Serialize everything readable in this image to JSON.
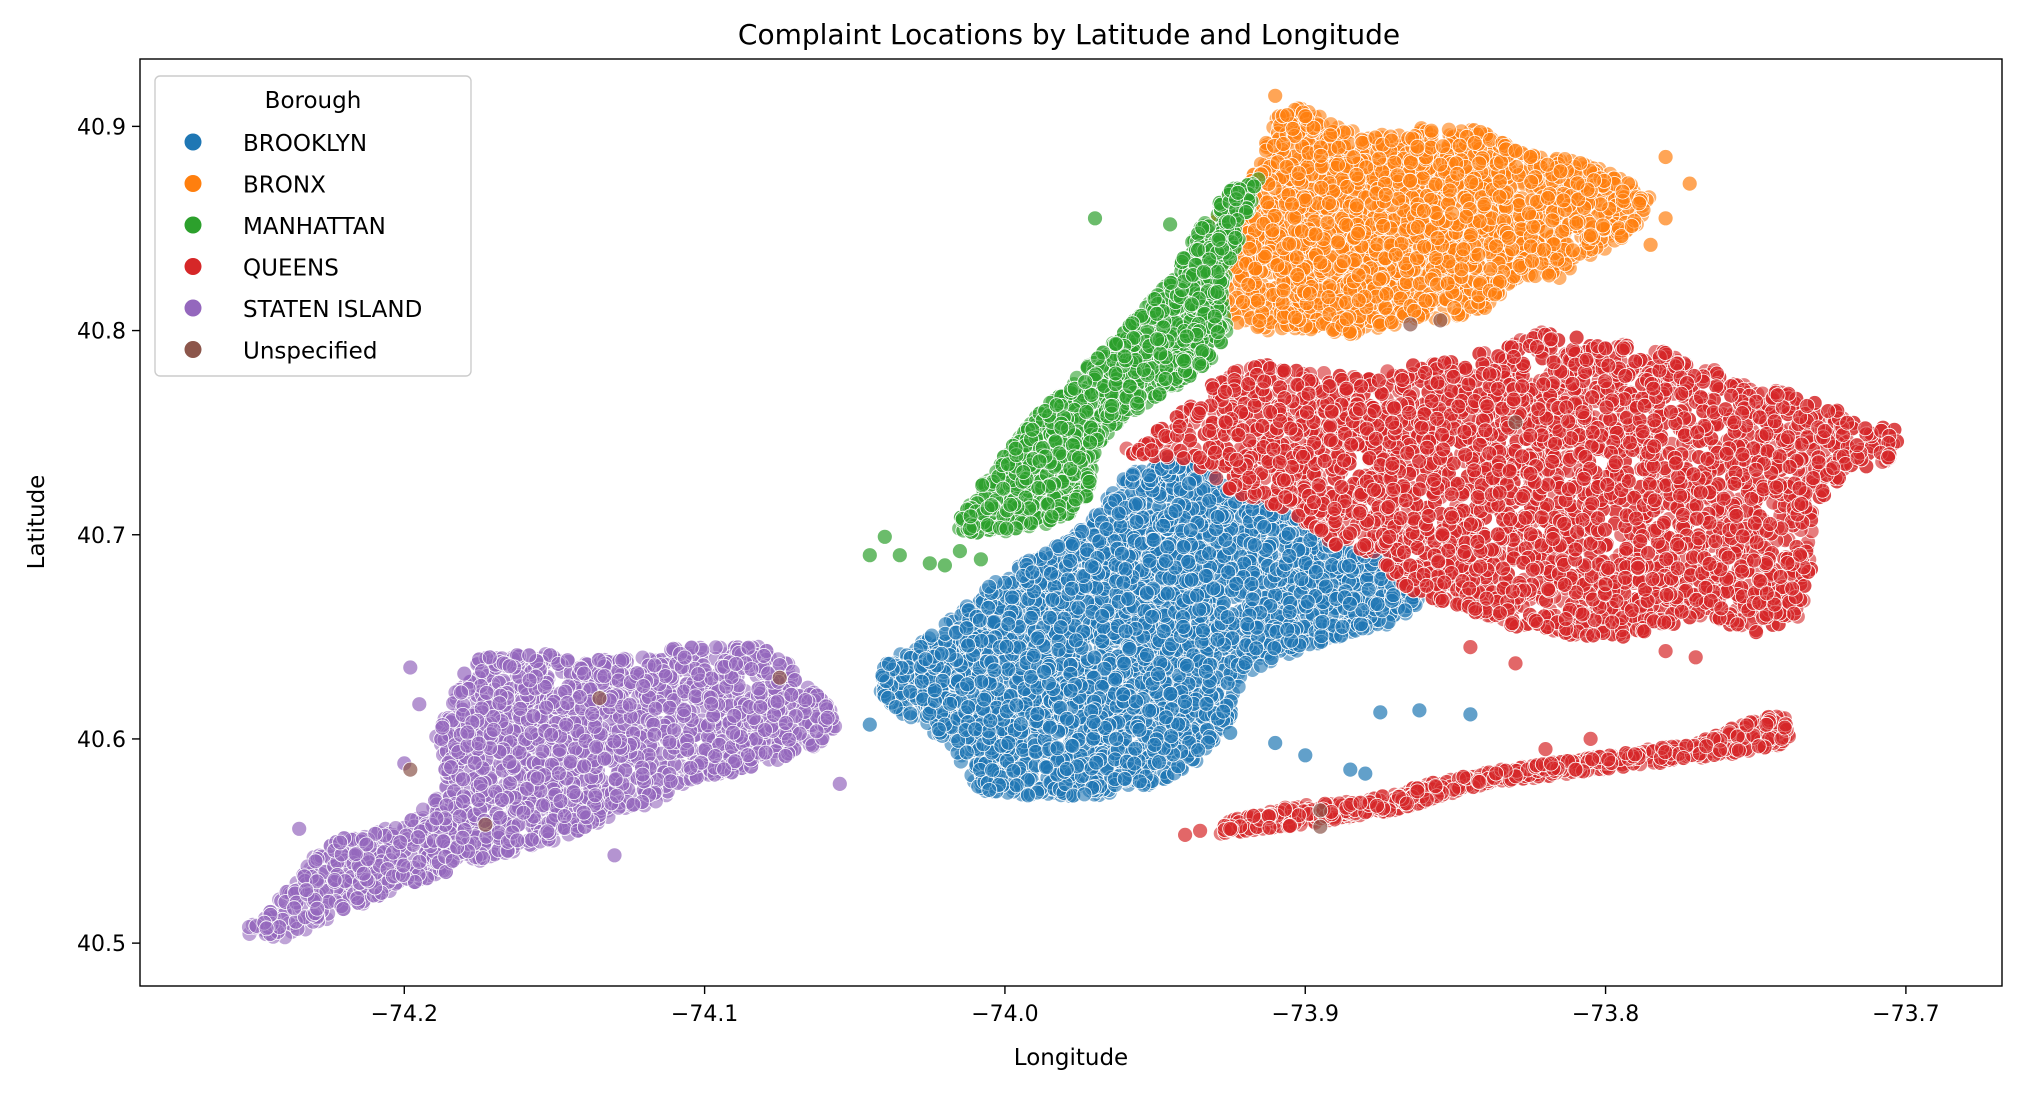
{
  "chart_data": {
    "type": "scatter",
    "title": "Complaint Locations by Latitude and Longitude",
    "xlabel": "Longitude",
    "ylabel": "Latitude",
    "xlim": [
      -74.288,
      -73.668
    ],
    "ylim": [
      40.479,
      40.933
    ],
    "xticks": [
      -74.2,
      -74.1,
      -74.0,
      -73.9,
      -73.8,
      -73.7
    ],
    "xtick_labels": [
      "−74.2",
      "−74.1",
      "−74.0",
      "−73.9",
      "−73.8",
      "−73.7"
    ],
    "yticks": [
      40.5,
      40.6,
      40.7,
      40.8,
      40.9
    ],
    "ytick_labels": [
      "40.5",
      "40.6",
      "40.7",
      "40.8",
      "40.9"
    ],
    "grid": false,
    "legend": {
      "title": "Borough",
      "placement": "top-left",
      "entries": [
        "BROOKLYN",
        "BRONX",
        "MANHATTAN",
        "QUEENS",
        "STATEN ISLAND",
        "Unspecified"
      ]
    },
    "series": [
      {
        "name": "BROOKLYN",
        "color": "#1f77b4",
        "regions": [
          {
            "polygon": [
              [
                -74.04,
                40.637
              ],
              [
                -74.025,
                40.65
              ],
              [
                -74.005,
                40.675
              ],
              [
                -73.99,
                40.69
              ],
              [
                -73.975,
                40.702
              ],
              [
                -73.96,
                40.728
              ],
              [
                -73.948,
                40.738
              ],
              [
                -73.935,
                40.735
              ],
              [
                -73.925,
                40.722
              ],
              [
                -73.905,
                40.71
              ],
              [
                -73.89,
                40.695
              ],
              [
                -73.88,
                40.69
              ],
              [
                -73.87,
                40.69
              ],
              [
                -73.86,
                40.675
              ],
              [
                -73.865,
                40.66
              ],
              [
                -73.88,
                40.652
              ],
              [
                -73.9,
                40.645
              ],
              [
                -73.92,
                40.632
              ],
              [
                -73.925,
                40.61
              ],
              [
                -73.935,
                40.59
              ],
              [
                -73.95,
                40.578
              ],
              [
                -73.97,
                40.572
              ],
              [
                -73.99,
                40.572
              ],
              [
                -74.01,
                40.575
              ],
              [
                -74.02,
                40.6
              ],
              [
                -74.035,
                40.612
              ],
              [
                -74.042,
                40.624
              ]
            ],
            "count": 3800
          }
        ],
        "points": [
          [
            -73.875,
            40.613
          ],
          [
            -73.862,
            40.614
          ],
          [
            -73.845,
            40.612
          ],
          [
            -73.88,
            40.583
          ],
          [
            -73.885,
            40.585
          ],
          [
            -73.9,
            40.592
          ],
          [
            -73.91,
            40.598
          ],
          [
            -73.925,
            40.603
          ],
          [
            -74.045,
            40.607
          ]
        ]
      },
      {
        "name": "BRONX",
        "color": "#ff7f0e",
        "regions": [
          {
            "polygon": [
              [
                -73.935,
                40.845
              ],
              [
                -73.925,
                40.868
              ],
              [
                -73.915,
                40.885
              ],
              [
                -73.91,
                40.905
              ],
              [
                -73.9,
                40.91
              ],
              [
                -73.89,
                40.9
              ],
              [
                -73.87,
                40.895
              ],
              [
                -73.86,
                40.9
              ],
              [
                -73.84,
                40.898
              ],
              [
                -73.83,
                40.888
              ],
              [
                -73.815,
                40.885
              ],
              [
                -73.8,
                40.88
              ],
              [
                -73.785,
                40.865
              ],
              [
                -73.79,
                40.85
              ],
              [
                -73.805,
                40.835
              ],
              [
                -73.815,
                40.825
              ],
              [
                -73.83,
                40.825
              ],
              [
                -73.84,
                40.81
              ],
              [
                -73.855,
                40.805
              ],
              [
                -73.87,
                40.803
              ],
              [
                -73.885,
                40.798
              ],
              [
                -73.9,
                40.8
              ],
              [
                -73.915,
                40.8
              ],
              [
                -73.925,
                40.805
              ],
              [
                -73.932,
                40.82
              ]
            ],
            "count": 2400
          }
        ],
        "points": [
          [
            -73.78,
            40.885
          ],
          [
            -73.772,
            40.872
          ],
          [
            -73.78,
            40.855
          ],
          [
            -73.785,
            40.842
          ],
          [
            -73.815,
            40.878
          ],
          [
            -73.825,
            40.885
          ],
          [
            -73.83,
            40.888
          ],
          [
            -73.9,
            40.905
          ],
          [
            -73.91,
            40.915
          ]
        ]
      },
      {
        "name": "MANHATTAN",
        "color": "#2ca02c",
        "regions": [
          {
            "polygon": [
              [
                -74.017,
                40.703
              ],
              [
                -74.01,
                40.72
              ],
              [
                -73.995,
                40.75
              ],
              [
                -73.978,
                40.775
              ],
              [
                -73.96,
                40.8
              ],
              [
                -73.945,
                40.825
              ],
              [
                -73.935,
                40.85
              ],
              [
                -73.925,
                40.87
              ],
              [
                -73.915,
                40.875
              ],
              [
                -73.922,
                40.845
              ],
              [
                -73.928,
                40.82
              ],
              [
                -73.925,
                40.8
              ],
              [
                -73.932,
                40.785
              ],
              [
                -73.945,
                40.77
              ],
              [
                -73.96,
                40.758
              ],
              [
                -73.97,
                40.742
              ],
              [
                -73.972,
                40.72
              ],
              [
                -73.98,
                40.707
              ],
              [
                -73.998,
                40.702
              ],
              [
                -74.01,
                40.7
              ]
            ],
            "count": 1800
          }
        ],
        "points": [
          [
            -74.04,
            40.699
          ],
          [
            -74.045,
            40.69
          ],
          [
            -74.025,
            40.686
          ],
          [
            -74.02,
            40.685
          ],
          [
            -74.035,
            40.69
          ],
          [
            -73.945,
            40.852
          ],
          [
            -73.97,
            40.855
          ],
          [
            -74.015,
            40.692
          ],
          [
            -74.008,
            40.688
          ]
        ]
      },
      {
        "name": "QUEENS",
        "color": "#d62728",
        "regions": [
          {
            "polygon": [
              [
                -73.962,
                40.74
              ],
              [
                -73.945,
                40.755
              ],
              [
                -73.93,
                40.775
              ],
              [
                -73.92,
                40.785
              ],
              [
                -73.9,
                40.78
              ],
              [
                -73.88,
                40.778
              ],
              [
                -73.86,
                40.785
              ],
              [
                -73.84,
                40.79
              ],
              [
                -73.82,
                40.8
              ],
              [
                -73.8,
                40.795
              ],
              [
                -73.785,
                40.792
              ],
              [
                -73.77,
                40.785
              ],
              [
                -73.755,
                40.775
              ],
              [
                -73.74,
                40.77
              ],
              [
                -73.72,
                40.76
              ],
              [
                -73.7,
                40.75
              ],
              [
                -73.705,
                40.735
              ],
              [
                -73.72,
                40.73
              ],
              [
                -73.73,
                40.715
              ],
              [
                -73.73,
                40.69
              ],
              [
                -73.735,
                40.66
              ],
              [
                -73.75,
                40.652
              ],
              [
                -73.77,
                40.66
              ],
              [
                -73.79,
                40.65
              ],
              [
                -73.81,
                40.65
              ],
              [
                -73.83,
                40.655
              ],
              [
                -73.85,
                40.665
              ],
              [
                -73.87,
                40.675
              ],
              [
                -73.875,
                40.69
              ],
              [
                -73.89,
                40.695
              ],
              [
                -73.905,
                40.71
              ],
              [
                -73.925,
                40.722
              ],
              [
                -73.94,
                40.737
              ]
            ],
            "count": 5200
          },
          {
            "polygon": [
              [
                -73.925,
                40.56
              ],
              [
                -73.905,
                40.567
              ],
              [
                -73.88,
                40.57
              ],
              [
                -73.86,
                40.578
              ],
              [
                -73.835,
                40.585
              ],
              [
                -73.8,
                40.592
              ],
              [
                -73.77,
                40.598
              ],
              [
                -73.75,
                40.61
              ],
              [
                -73.74,
                40.612
              ],
              [
                -73.738,
                40.598
              ],
              [
                -73.76,
                40.592
              ],
              [
                -73.8,
                40.585
              ],
              [
                -73.84,
                40.578
              ],
              [
                -73.87,
                40.565
              ],
              [
                -73.9,
                40.558
              ],
              [
                -73.93,
                40.553
              ]
            ],
            "count": 900
          }
        ],
        "points": [
          [
            -73.83,
            40.637
          ],
          [
            -73.845,
            40.645
          ],
          [
            -73.81,
            40.585
          ],
          [
            -73.82,
            40.595
          ],
          [
            -73.805,
            40.6
          ],
          [
            -73.78,
            40.643
          ],
          [
            -73.77,
            40.64
          ],
          [
            -73.935,
            40.555
          ],
          [
            -73.94,
            40.553
          ],
          [
            -73.925,
            40.556
          ]
        ]
      },
      {
        "name": "STATEN ISLAND",
        "color": "#9467bd",
        "regions": [
          {
            "polygon": [
              [
                -74.255,
                40.505
              ],
              [
                -74.245,
                40.515
              ],
              [
                -74.235,
                40.535
              ],
              [
                -74.225,
                40.55
              ],
              [
                -74.2,
                40.558
              ],
              [
                -74.185,
                40.578
              ],
              [
                -74.19,
                40.6
              ],
              [
                -74.185,
                40.62
              ],
              [
                -74.175,
                40.64
              ],
              [
                -74.155,
                40.642
              ],
              [
                -74.14,
                40.64
              ],
              [
                -74.12,
                40.643
              ],
              [
                -74.1,
                40.646
              ],
              [
                -74.08,
                40.645
              ],
              [
                -74.07,
                40.635
              ],
              [
                -74.06,
                40.62
              ],
              [
                -74.055,
                40.605
              ],
              [
                -74.065,
                40.595
              ],
              [
                -74.085,
                40.585
              ],
              [
                -74.105,
                40.58
              ],
              [
                -74.115,
                40.57
              ],
              [
                -74.13,
                40.562
              ],
              [
                -74.15,
                40.55
              ],
              [
                -74.175,
                40.54
              ],
              [
                -74.2,
                40.528
              ],
              [
                -74.22,
                40.515
              ],
              [
                -74.24,
                40.502
              ]
            ],
            "count": 2600
          }
        ],
        "points": [
          [
            -74.198,
            40.635
          ],
          [
            -74.195,
            40.617
          ],
          [
            -74.18,
            40.632
          ],
          [
            -74.13,
            40.543
          ],
          [
            -74.055,
            40.578
          ],
          [
            -74.235,
            40.556
          ],
          [
            -74.2,
            40.588
          ]
        ]
      },
      {
        "name": "Unspecified",
        "color": "#8c564b",
        "regions": [],
        "points": [
          [
            -74.173,
            40.558
          ],
          [
            -74.135,
            40.62
          ],
          [
            -74.075,
            40.63
          ],
          [
            -74.198,
            40.585
          ],
          [
            -73.855,
            40.805
          ],
          [
            -73.865,
            40.803
          ],
          [
            -73.895,
            40.565
          ],
          [
            -73.895,
            40.557
          ],
          [
            -73.83,
            40.755
          ]
        ]
      }
    ]
  }
}
